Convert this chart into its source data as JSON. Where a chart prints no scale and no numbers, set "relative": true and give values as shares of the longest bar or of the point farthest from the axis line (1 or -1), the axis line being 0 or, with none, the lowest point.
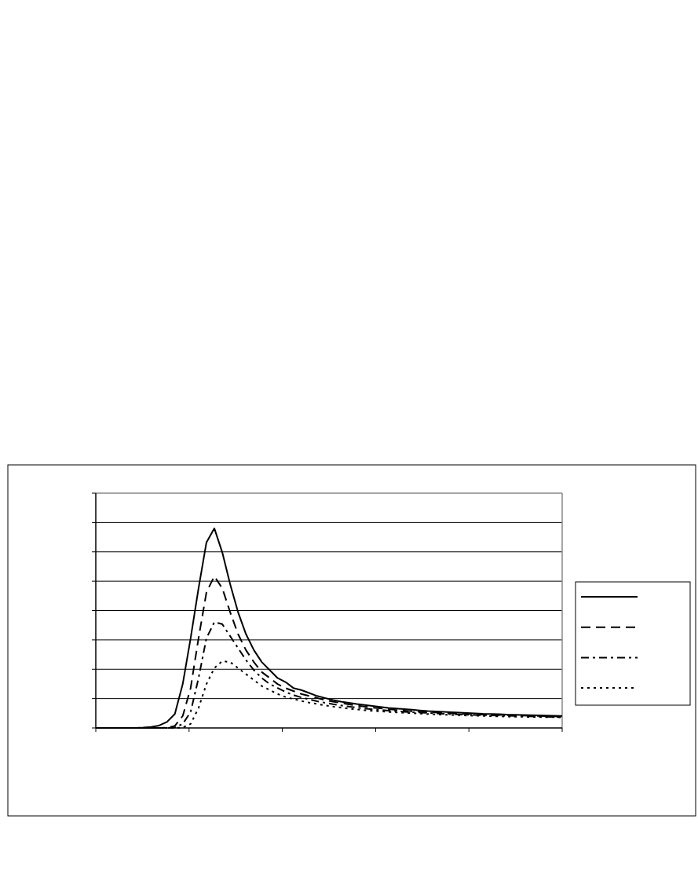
{
  "chart_data": {
    "type": "line",
    "relative": true,
    "grid": "y",
    "marker": "none",
    "categories": [
      null,
      null,
      null,
      null,
      null,
      null,
      null,
      null,
      null,
      null,
      null,
      null,
      null,
      null,
      null,
      null,
      null,
      null,
      null,
      null,
      null,
      null,
      null,
      null,
      null,
      null,
      null,
      null,
      null,
      null,
      null,
      null,
      null,
      null,
      null,
      null,
      null,
      null,
      null,
      null,
      null,
      null,
      null,
      null,
      null,
      null,
      null,
      null,
      null,
      null,
      null,
      null,
      null,
      null,
      null,
      null,
      null,
      null,
      null,
      null
    ],
    "series": [
      {
        "color": "#000000",
        "line_style": "solid",
        "values": [
          0,
          0,
          0,
          0,
          0,
          0,
          0.002,
          0.005,
          0.012,
          0.03,
          0.07,
          0.22,
          0.45,
          0.7,
          0.93,
          1,
          0.88,
          0.72,
          0.58,
          0.47,
          0.39,
          0.33,
          0.29,
          0.25,
          0.23,
          0.2,
          0.19,
          0.175,
          0.16,
          0.15,
          0.14,
          0.132,
          0.126,
          0.12,
          0.115,
          0.11,
          0.105,
          0.1,
          0.097,
          0.094,
          0.091,
          0.088,
          0.085,
          0.083,
          0.081,
          0.079,
          0.077,
          0.075,
          0.073,
          0.071,
          0.07,
          0.069,
          0.067,
          0.066,
          0.065,
          0.064,
          0.063,
          0.062,
          0.061,
          0.06
        ]
      },
      {
        "color": "#000000",
        "line_style": "dashed",
        "values": [
          0,
          0,
          0,
          0,
          0,
          0,
          0,
          0,
          0,
          0.002,
          0.01,
          0.06,
          0.2,
          0.45,
          0.68,
          0.76,
          0.7,
          0.58,
          0.47,
          0.39,
          0.33,
          0.28,
          0.25,
          0.22,
          0.2,
          0.185,
          0.17,
          0.16,
          0.15,
          0.14,
          0.132,
          0.125,
          0.118,
          0.112,
          0.107,
          0.102,
          0.098,
          0.094,
          0.09,
          0.087,
          0.084,
          0.082,
          0.08,
          0.078,
          0.076,
          0.074,
          0.072,
          0.07,
          0.069,
          0.067,
          0.066,
          0.065,
          0.064,
          0.063,
          0.062,
          0.061,
          0.06,
          0.059,
          0.058,
          0.057
        ]
      },
      {
        "color": "#000000",
        "line_style": "dashdot",
        "values": [
          0,
          0,
          0,
          0,
          0,
          0,
          0,
          0,
          0,
          0,
          0.003,
          0.02,
          0.08,
          0.25,
          0.45,
          0.53,
          0.52,
          0.46,
          0.4,
          0.34,
          0.29,
          0.25,
          0.22,
          0.2,
          0.18,
          0.165,
          0.153,
          0.143,
          0.134,
          0.126,
          0.119,
          0.113,
          0.107,
          0.102,
          0.097,
          0.093,
          0.09,
          0.087,
          0.084,
          0.081,
          0.079,
          0.077,
          0.075,
          0.073,
          0.071,
          0.069,
          0.068,
          0.066,
          0.065,
          0.064,
          0.063,
          0.062,
          0.061,
          0.06,
          0.059,
          0.058,
          0.057,
          0.056,
          0.055,
          0.055
        ]
      },
      {
        "color": "#000000",
        "line_style": "dotted",
        "values": [
          0,
          0,
          0,
          0,
          0,
          0,
          0,
          0,
          0,
          0,
          0,
          0.002,
          0.02,
          0.1,
          0.22,
          0.3,
          0.335,
          0.33,
          0.3,
          0.27,
          0.24,
          0.21,
          0.19,
          0.17,
          0.155,
          0.145,
          0.135,
          0.127,
          0.12,
          0.113,
          0.107,
          0.102,
          0.097,
          0.093,
          0.089,
          0.086,
          0.083,
          0.08,
          0.078,
          0.076,
          0.074,
          0.072,
          0.07,
          0.068,
          0.066,
          0.065,
          0.064,
          0.062,
          0.061,
          0.06,
          0.059,
          0.058,
          0.057,
          0.056,
          0.056,
          0.055,
          0.055,
          0.054,
          0.054,
          0.053
        ]
      }
    ]
  }
}
